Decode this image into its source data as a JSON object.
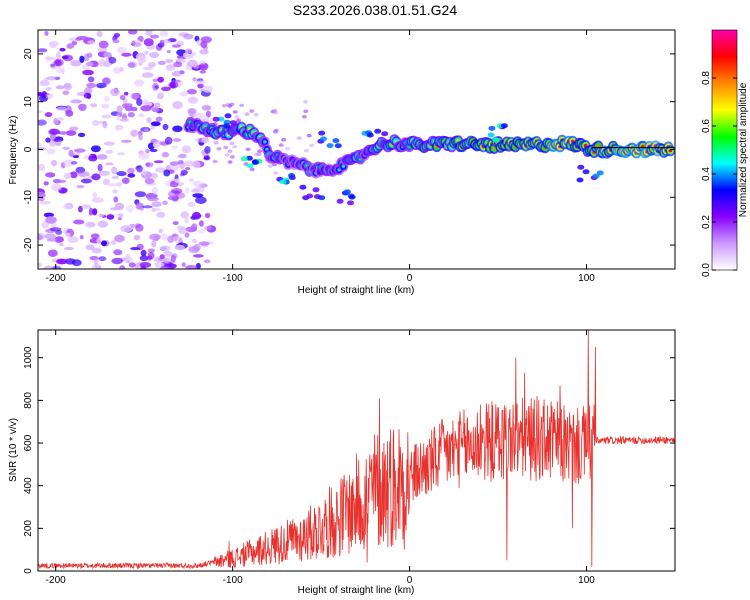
{
  "title": "S233.2026.038.01.51.G24",
  "colors": {
    "snr_line": "#e8302c",
    "ridge_core": "#e0114a",
    "frame": "#000000"
  },
  "chart_data": [
    {
      "type": "heatmap",
      "xlabel": "Height of straight line (km)",
      "ylabel": "Frequency (Hz)",
      "xlim": [
        -210,
        150
      ],
      "ylim": [
        -25,
        25
      ],
      "xticks": [
        -200,
        -100,
        0,
        100
      ],
      "xtick_labels": [
        "-200",
        "-100",
        "0",
        "100"
      ],
      "yticks": [
        20,
        10,
        0,
        -10,
        -20
      ],
      "ytick_labels": [
        "20",
        "10",
        "0",
        "-10",
        "-20"
      ],
      "noise_region_x": [
        -210,
        -112
      ],
      "ridge": [
        {
          "x": -125,
          "f": 5.5,
          "a": 0.45
        },
        {
          "x": -115,
          "f": 4.5,
          "a": 0.55
        },
        {
          "x": -108,
          "f": 3.2,
          "a": 0.6
        },
        {
          "x": -95,
          "f": 4.2,
          "a": 0.6
        },
        {
          "x": -85,
          "f": 3.0,
          "a": 0.55
        },
        {
          "x": -78,
          "f": -1.5,
          "a": 0.5
        },
        {
          "x": -70,
          "f": -2.5,
          "a": 0.45
        },
        {
          "x": -60,
          "f": -3.5,
          "a": 0.45
        },
        {
          "x": -52,
          "f": -4.5,
          "a": 0.45
        },
        {
          "x": -40,
          "f": -3.5,
          "a": 0.5
        },
        {
          "x": -32,
          "f": -2.5,
          "a": 0.5
        },
        {
          "x": -20,
          "f": 0.5,
          "a": 0.55
        },
        {
          "x": -10,
          "f": 1.5,
          "a": 0.6
        },
        {
          "x": 0,
          "f": 1.0,
          "a": 0.6
        },
        {
          "x": 15,
          "f": 1.0,
          "a": 0.7
        },
        {
          "x": 25,
          "f": 1.3,
          "a": 0.75
        },
        {
          "x": 40,
          "f": 1.0,
          "a": 0.8
        },
        {
          "x": 55,
          "f": 0.8,
          "a": 0.85
        },
        {
          "x": 70,
          "f": 1.0,
          "a": 0.85
        },
        {
          "x": 85,
          "f": 1.3,
          "a": 0.9
        },
        {
          "x": 95,
          "f": 1.0,
          "a": 0.8
        },
        {
          "x": 103,
          "f": 0.0,
          "a": 0.75
        },
        {
          "x": 115,
          "f": 0.0,
          "a": 0.95
        },
        {
          "x": 130,
          "f": 0.0,
          "a": 0.98
        },
        {
          "x": 148,
          "f": 0.0,
          "a": 0.95
        }
      ],
      "branches": [
        {
          "x": -105,
          "f": 6.0,
          "a": 0.4
        },
        {
          "x": -88,
          "f": -3.0,
          "a": 0.5
        },
        {
          "x": -70,
          "f": -6.0,
          "a": 0.45
        },
        {
          "x": -55,
          "f": -9.0,
          "a": 0.35
        },
        {
          "x": -45,
          "f": 2.0,
          "a": 0.45
        },
        {
          "x": -35,
          "f": -10.0,
          "a": 0.35
        },
        {
          "x": -20,
          "f": 4.5,
          "a": 0.45
        },
        {
          "x": 50,
          "f": 3.5,
          "a": 0.45
        },
        {
          "x": 102,
          "f": -5.0,
          "a": 0.4
        }
      ],
      "colorbar": {
        "label": "Normalized spectral amplitude",
        "range": [
          0.0,
          1.0
        ],
        "ticks": [
          0.0,
          0.2,
          0.4,
          0.6,
          0.8
        ],
        "tick_labels": [
          "0.0",
          "0.2",
          "0.4",
          "0.6",
          "0.8"
        ],
        "stops": [
          "#ffffff",
          "#cc99ff",
          "#8800ff",
          "#0000ff",
          "#00ffff",
          "#00ff00",
          "#ffff00",
          "#ff8800",
          "#ff0000",
          "#ff00aa"
        ]
      }
    },
    {
      "type": "line",
      "xlabel": "Height of straight line (km)",
      "ylabel": "SNR (10 * v/v)",
      "xlim": [
        -210,
        150
      ],
      "ylim": [
        0,
        1130
      ],
      "xticks": [
        -200,
        -100,
        0,
        100
      ],
      "xtick_labels": [
        "-200",
        "-100",
        "0",
        "100"
      ],
      "yticks": [
        0,
        200,
        400,
        600,
        800,
        1000
      ],
      "ytick_labels": [
        "0",
        "200",
        "400",
        "600",
        "800",
        "1000"
      ],
      "baseline": [
        {
          "x": -210,
          "y": 25
        },
        {
          "x": -120,
          "y": 25
        },
        {
          "x": -100,
          "y": 60
        },
        {
          "x": -80,
          "y": 110
        },
        {
          "x": -60,
          "y": 160
        },
        {
          "x": -40,
          "y": 250
        },
        {
          "x": -20,
          "y": 380
        },
        {
          "x": 0,
          "y": 440
        },
        {
          "x": 20,
          "y": 550
        },
        {
          "x": 40,
          "y": 600
        },
        {
          "x": 60,
          "y": 620
        },
        {
          "x": 80,
          "y": 610
        },
        {
          "x": 95,
          "y": 580
        },
        {
          "x": 105,
          "y": 610
        },
        {
          "x": 150,
          "y": 615
        }
      ],
      "peaks": [
        {
          "x": -102,
          "y": 140
        },
        {
          "x": -75,
          "y": 200
        },
        {
          "x": -58,
          "y": 250
        },
        {
          "x": -33,
          "y": 400
        },
        {
          "x": -17,
          "y": 810
        },
        {
          "x": -8,
          "y": 470
        },
        {
          "x": 18,
          "y": 680
        },
        {
          "x": 40,
          "y": 780
        },
        {
          "x": 55,
          "y": 1110
        },
        {
          "x": 60,
          "y": 1000
        },
        {
          "x": 65,
          "y": 930
        },
        {
          "x": 72,
          "y": 820
        },
        {
          "x": 85,
          "y": 870
        },
        {
          "x": 101,
          "y": 1130
        },
        {
          "x": 105,
          "y": 1050
        }
      ],
      "dips": [
        {
          "x": -24,
          "y": 40
        },
        {
          "x": -3,
          "y": 100
        },
        {
          "x": 55,
          "y": 50
        },
        {
          "x": 92,
          "y": 200
        },
        {
          "x": 103,
          "y": 20
        }
      ]
    }
  ]
}
